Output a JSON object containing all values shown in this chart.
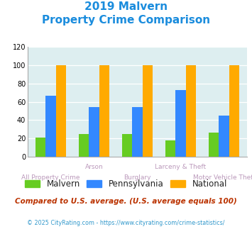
{
  "title_line1": "2019 Malvern",
  "title_line2": "Property Crime Comparison",
  "title_color": "#1a8cdd",
  "malvern": [
    21,
    25,
    25,
    18,
    26
  ],
  "pennsylvania": [
    67,
    54,
    54,
    73,
    45
  ],
  "national": [
    100,
    100,
    100,
    100,
    100
  ],
  "malvern_color": "#66cc22",
  "pennsylvania_color": "#3388ff",
  "national_color": "#ffaa00",
  "bg_color": "#ddeef0",
  "ylim": [
    0,
    120
  ],
  "yticks": [
    0,
    20,
    40,
    60,
    80,
    100,
    120
  ],
  "xlabel_color": "#bb99bb",
  "legend_labels": [
    "Malvern",
    "Pennsylvania",
    "National"
  ],
  "footnote1": "Compared to U.S. average. (U.S. average equals 100)",
  "footnote2": "© 2025 CityRating.com - https://www.cityrating.com/crime-statistics/",
  "footnote1_color": "#bb3300",
  "footnote2_color": "#3399cc",
  "xtick_top": [
    "",
    "Arson",
    "",
    "Larceny & Theft",
    ""
  ],
  "xtick_bot": [
    "All Property Crime",
    "",
    "Burglary",
    "",
    "Motor Vehicle Theft"
  ]
}
